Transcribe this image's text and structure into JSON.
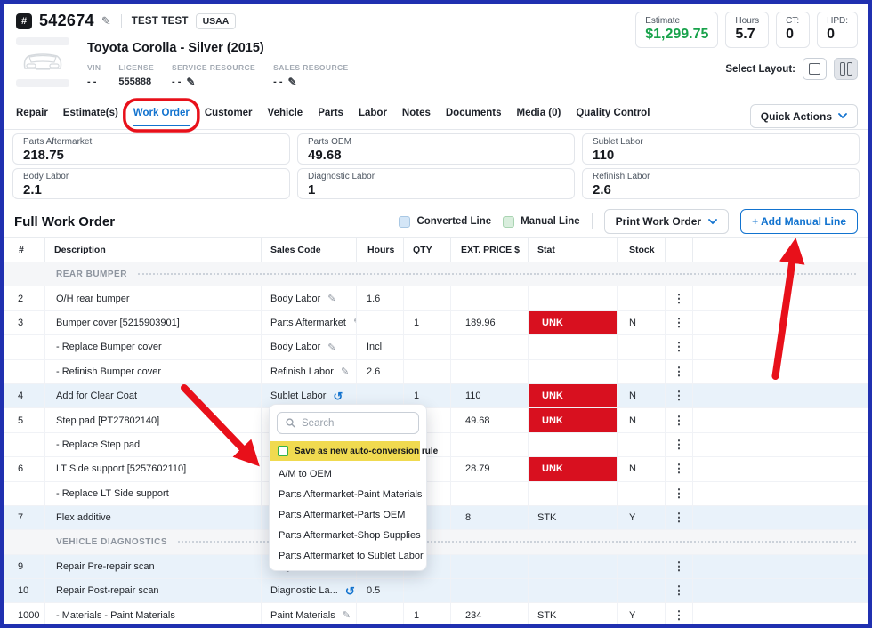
{
  "colors": {
    "accent_blue": "#1273cf",
    "badge_red": "#d8101f",
    "annotation_red": "#e8101a",
    "estimate_green": "#18a24b",
    "converted_row_bg": "#e9f2fa",
    "highlight_yellow": "#f0da50"
  },
  "icons": {
    "hash": "#",
    "pencil": "✎",
    "undo": "↺",
    "kebab": "⋮"
  },
  "header": {
    "ro_number": "542674",
    "customer_name": "TEST TEST",
    "insurer_badge": "USAA",
    "vehicle": {
      "title": "Toyota Corolla - Silver (2015)",
      "fields": [
        {
          "label": "VIN",
          "value": "- -",
          "editable": false
        },
        {
          "label": "LICENSE",
          "value": "555888",
          "editable": false
        },
        {
          "label": "SERVICE RESOURCE",
          "value": "- -",
          "editable": true
        },
        {
          "label": "SALES RESOURCE",
          "value": "- -",
          "editable": true
        }
      ]
    },
    "stats": [
      {
        "label": "Estimate",
        "value": "$1,299.75",
        "color": "#18a24b"
      },
      {
        "label": "Hours",
        "value": "5.7"
      },
      {
        "label": "CT:",
        "value": "0"
      },
      {
        "label": "HPD:",
        "value": "0"
      }
    ],
    "select_layout_label": "Select Layout:"
  },
  "tabs": [
    "Repair",
    "Estimate(s)",
    "Work Order",
    "Customer",
    "Vehicle",
    "Parts",
    "Labor",
    "Notes",
    "Documents",
    "Media (0)",
    "Quality Control"
  ],
  "active_tab": "Work Order",
  "quick_actions_label": "Quick Actions",
  "summary": [
    {
      "label": "Parts Aftermarket",
      "value": "218.75"
    },
    {
      "label": "Parts OEM",
      "value": "49.68"
    },
    {
      "label": "Sublet Labor",
      "value": "110"
    },
    {
      "label": "Body Labor",
      "value": "2.1"
    },
    {
      "label": "Diagnostic Labor",
      "value": "1"
    },
    {
      "label": "Refinish Labor",
      "value": "2.6"
    }
  ],
  "work_order": {
    "title": "Full Work Order",
    "legend": [
      {
        "label": "Converted Line",
        "fill": "#d4e6f7",
        "border": "#a9c8e4"
      },
      {
        "label": "Manual Line",
        "fill": "#d9eedd",
        "border": "#a9d4b2"
      }
    ],
    "print_button": "Print Work Order",
    "add_button": "+ Add Manual Line",
    "columns": [
      "#",
      "Description",
      "Sales Code",
      "Hours",
      "QTY",
      "EXT. PRICE $",
      "Stat",
      "Stock"
    ],
    "rows": [
      {
        "type": "section",
        "label": "REAR BUMPER"
      },
      {
        "num": "2",
        "desc": "O/H rear bumper",
        "sales": "Body Labor",
        "icon": "pencil",
        "hours": "1.6",
        "qty": "",
        "ext": "",
        "stat": "",
        "badge": false,
        "stock": "",
        "highlight": false
      },
      {
        "num": "3",
        "desc": "Bumper cover [5215903901]",
        "sales": "Parts Aftermarket",
        "icon": "pencil",
        "hours": "",
        "qty": "1",
        "ext": "189.96",
        "stat": "UNK",
        "badge": true,
        "stock": "N",
        "highlight": false
      },
      {
        "num": "",
        "desc": "- Replace Bumper cover",
        "sales": "Body Labor",
        "icon": "pencil",
        "hours": "Incl",
        "qty": "",
        "ext": "",
        "stat": "",
        "badge": false,
        "stock": "",
        "highlight": false
      },
      {
        "num": "",
        "desc": "- Refinish Bumper cover",
        "sales": "Refinish Labor",
        "icon": "pencil",
        "hours": "2.6",
        "qty": "",
        "ext": "",
        "stat": "",
        "badge": false,
        "stock": "",
        "highlight": false
      },
      {
        "num": "4",
        "desc": "Add for Clear Coat",
        "sales": "Sublet Labor",
        "icon": "undo",
        "hours": "",
        "qty": "1",
        "ext": "110",
        "stat": "UNK",
        "badge": true,
        "stock": "N",
        "highlight": true
      },
      {
        "num": "5",
        "desc": "Step pad [PT27802140]",
        "sales": "",
        "icon": "",
        "hours": "",
        "qty": "",
        "ext": "49.68",
        "stat": "UNK",
        "badge": true,
        "stock": "N",
        "highlight": false
      },
      {
        "num": "",
        "desc": "- Replace Step pad",
        "sales": "",
        "icon": "",
        "hours": "",
        "qty": "",
        "ext": "",
        "stat": "",
        "badge": false,
        "stock": "",
        "highlight": false
      },
      {
        "num": "6",
        "desc": "LT Side support [5257602110]",
        "sales": "",
        "icon": "",
        "hours": "",
        "qty": "",
        "ext": "28.79",
        "stat": "UNK",
        "badge": true,
        "stock": "N",
        "highlight": false
      },
      {
        "num": "",
        "desc": "- Replace LT Side support",
        "sales": "",
        "icon": "",
        "hours": "",
        "qty": "",
        "ext": "",
        "stat": "",
        "badge": false,
        "stock": "",
        "highlight": false
      },
      {
        "num": "7",
        "desc": "Flex additive",
        "sales": "",
        "icon": "",
        "hours": "",
        "qty": "",
        "ext": "8",
        "stat": "STK",
        "badge": false,
        "stock": "Y",
        "highlight": true
      },
      {
        "type": "section",
        "label": "VEHICLE DIAGNOSTICS"
      },
      {
        "num": "9",
        "desc": "Repair Pre-repair scan",
        "sales": "Diagnostic La...",
        "icon": "undo",
        "hours": "0.5",
        "qty": "",
        "ext": "",
        "stat": "",
        "badge": false,
        "stock": "",
        "highlight": true
      },
      {
        "num": "10",
        "desc": "Repair Post-repair scan",
        "sales": "Diagnostic La...",
        "icon": "undo",
        "hours": "0.5",
        "qty": "",
        "ext": "",
        "stat": "",
        "badge": false,
        "stock": "",
        "highlight": true
      },
      {
        "num": "1000",
        "desc": "- Materials - Paint Materials",
        "sales": "Paint Materials",
        "icon": "pencil",
        "hours": "",
        "qty": "1",
        "ext": "234",
        "stat": "STK",
        "badge": false,
        "stock": "Y",
        "highlight": false
      }
    ]
  },
  "dropdown": {
    "search_placeholder": "Search",
    "checkbox_label": "Save as new auto-conversion rule",
    "items": [
      "A/M to OEM",
      "Parts Aftermarket-Paint Materials",
      "Parts Aftermarket-Parts OEM",
      "Parts Aftermarket-Shop Supplies",
      "Parts Aftermarket to Sublet Labor"
    ]
  }
}
